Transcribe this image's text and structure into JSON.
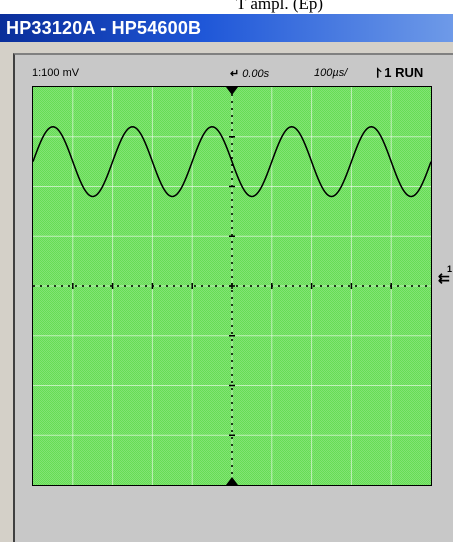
{
  "page_fragment": "T ampl. (Ep) ",
  "window": {
    "title": "HP33120A - HP54600B"
  },
  "scope": {
    "probe": "1:100 mV",
    "trigger_delay": "0.00s",
    "timebase": "100µs/",
    "trigger_channel": "1",
    "run_state": "RUN",
    "ground_channel": "1",
    "grid": {
      "divisions_x": 10,
      "divisions_y": 8
    },
    "colors": {
      "screen": "#66dd55",
      "grid": "#000000",
      "trace": "#000000",
      "title_bar": "#1f57d8"
    },
    "icons": [
      "trigger-delay-arrow-icon",
      "trigger-slope-icon",
      "trigger-position-marker-icon",
      "ground-level-marker-icon"
    ]
  },
  "chart_data": {
    "type": "line",
    "title": "",
    "xlabel": "",
    "ylabel": "",
    "xlim": [
      -0.0005,
      0.0005
    ],
    "ylim": [
      -0.4,
      0.4
    ],
    "grid": true,
    "series": [
      {
        "waveform": "sine",
        "frequency_hz": 5000,
        "amplitude": 0.07,
        "offset": 0.25
      }
    ]
  }
}
